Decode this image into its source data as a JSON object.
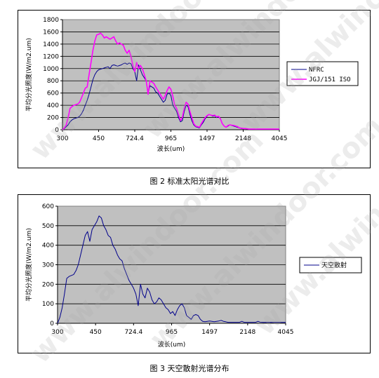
{
  "captions": {
    "fig2": "图 2  标准太阳光谱对比",
    "fig3": "图 3 天空散射光谱分布"
  },
  "watermark": "www.alwindoor.com",
  "colors": {
    "plot_bg": "#c0c0c0",
    "nfrc": "#00008b",
    "jgj": "#ff00ff",
    "sky": "#00008b"
  },
  "chart_data": [
    {
      "type": "line",
      "title": "",
      "xlabel": "波长(um)",
      "ylabel": "平均分光照度(W/m2.um)",
      "ylim": [
        0,
        1800
      ],
      "yticks": [
        0,
        200,
        400,
        600,
        800,
        1000,
        1200,
        1400,
        1600,
        1800
      ],
      "xtick_labels": [
        "300",
        "450",
        "724.4",
        "965",
        "1497",
        "2148",
        "4045"
      ],
      "grid": true,
      "legend": "right",
      "series": [
        {
          "name": "NFRC",
          "color": "nfrc",
          "values": [
            0,
            20,
            50,
            80,
            130,
            160,
            180,
            190,
            200,
            220,
            260,
            320,
            400,
            480,
            580,
            700,
            820,
            900,
            950,
            980,
            990,
            1000,
            1010,
            1020,
            1030,
            1000,
            1050,
            1060,
            1050,
            1040,
            1050,
            1060,
            1080,
            1090,
            1070,
            1090,
            1080,
            1000,
            950,
            800,
            1060,
            980,
            900,
            850,
            800,
            600,
            720,
            700,
            680,
            620,
            600,
            550,
            500,
            450,
            480,
            580,
            600,
            560,
            400,
            350,
            300,
            200,
            130,
            150,
            300,
            400,
            380,
            250,
            150,
            80,
            50,
            40,
            30,
            80,
            120,
            180,
            220,
            250,
            240,
            220,
            230,
            200,
            210,
            180,
            100,
            60,
            40,
            60,
            80,
            70,
            60,
            50,
            40,
            30,
            20,
            15,
            20,
            15,
            10,
            10,
            10,
            10,
            10,
            10,
            10,
            10,
            10,
            10,
            10,
            10,
            10,
            10,
            10,
            10,
            10
          ]
        },
        {
          "name": "JGJ/151 ISO",
          "color": "jgj",
          "values": [
            0,
            30,
            80,
            200,
            350,
            380,
            400,
            410,
            420,
            450,
            520,
            600,
            680,
            700,
            900,
            1100,
            1300,
            1450,
            1550,
            1560,
            1580,
            1550,
            1500,
            1520,
            1500,
            1480,
            1500,
            1520,
            1450,
            1400,
            1420,
            1400,
            1380,
            1300,
            1250,
            1300,
            1200,
            1050,
            950,
            1100,
            1000,
            1050,
            1000,
            900,
            800,
            580,
            800,
            780,
            760,
            700,
            650,
            600,
            550,
            500,
            560,
            640,
            700,
            660,
            550,
            400,
            350,
            250,
            150,
            200,
            350,
            450,
            420,
            300,
            200,
            100,
            60,
            50,
            40,
            100,
            150,
            200,
            230,
            250,
            240,
            230,
            240,
            210,
            220,
            180,
            100,
            60,
            40,
            70,
            80,
            75,
            70,
            60,
            50,
            30,
            25,
            20,
            20,
            15,
            10,
            10,
            10,
            10,
            10,
            10,
            10,
            10,
            10,
            10,
            10,
            10,
            10,
            10,
            10,
            10,
            10
          ]
        }
      ]
    },
    {
      "type": "line",
      "title": "",
      "xlabel": "波长(um)",
      "ylabel": "平均分光照度(W/m2.um)",
      "ylim": [
        0,
        600
      ],
      "yticks": [
        0,
        100,
        200,
        300,
        400,
        500,
        600
      ],
      "xtick_labels": [
        "300",
        "450",
        "724.4",
        "965",
        "1497",
        "2148",
        "4045"
      ],
      "grid": true,
      "legend": "right",
      "series": [
        {
          "name": "天空散射",
          "color": "sky",
          "values": [
            0,
            30,
            80,
            150,
            230,
            240,
            245,
            250,
            270,
            300,
            350,
            400,
            450,
            470,
            420,
            480,
            500,
            520,
            550,
            540,
            500,
            480,
            450,
            440,
            400,
            380,
            350,
            330,
            320,
            280,
            250,
            220,
            200,
            180,
            150,
            90,
            200,
            150,
            130,
            180,
            160,
            120,
            100,
            110,
            130,
            120,
            100,
            80,
            70,
            50,
            60,
            40,
            70,
            90,
            100,
            80,
            40,
            30,
            20,
            40,
            45,
            40,
            20,
            10,
            8,
            10,
            12,
            10,
            8,
            10,
            12,
            15,
            10,
            8,
            5,
            5,
            5,
            5,
            5,
            5,
            10,
            5,
            5,
            5,
            5,
            5,
            5,
            10,
            5,
            5,
            5,
            5,
            5,
            5,
            5,
            5,
            5,
            5,
            5,
            5
          ]
        }
      ]
    }
  ]
}
